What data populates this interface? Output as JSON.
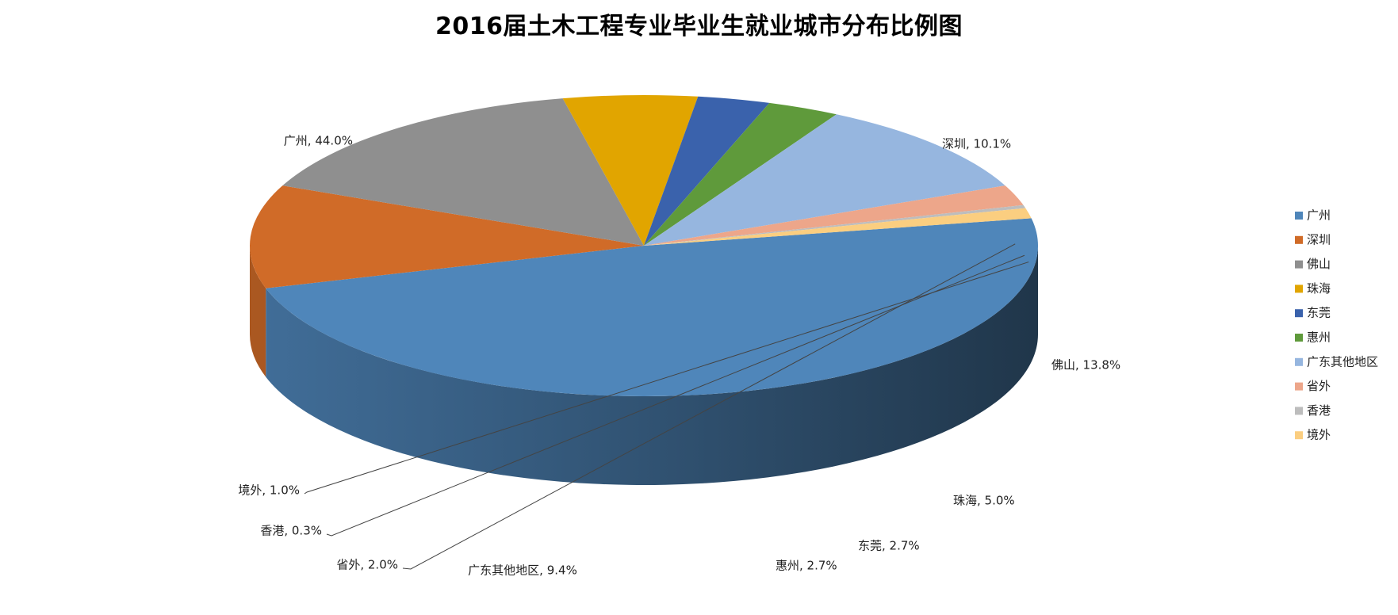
{
  "chart_data": {
    "type": "pie",
    "title": "2016届土木工程专业毕业生就业城市分布比例图",
    "legend_position": "right",
    "three_d": true,
    "label_separator": ", ",
    "slices": [
      {
        "name": "广州",
        "value": 44.0,
        "display": "44.0%",
        "color": "#4F86BA"
      },
      {
        "name": "深圳",
        "value": 10.1,
        "display": "10.1%",
        "color": "#D06B28"
      },
      {
        "name": "佛山",
        "value": 13.8,
        "display": "13.8%",
        "color": "#8F8F8F"
      },
      {
        "name": "珠海",
        "value": 5.0,
        "display": "5.0%",
        "color": "#E1A500"
      },
      {
        "name": "东莞",
        "value": 2.7,
        "display": "2.7%",
        "color": "#3A62AC"
      },
      {
        "name": "惠州",
        "value": 2.7,
        "display": "2.7%",
        "color": "#5F9A3B"
      },
      {
        "name": "广东其他地区",
        "value": 9.4,
        "display": "9.4%",
        "color": "#96B6DF"
      },
      {
        "name": "省外",
        "value": 2.0,
        "display": "2.0%",
        "color": "#EDA68A"
      },
      {
        "name": "香港",
        "value": 0.3,
        "display": "0.3%",
        "color": "#BDBDBD"
      },
      {
        "name": "境外",
        "value": 1.0,
        "display": "1.0%",
        "color": "#FBCE80"
      }
    ]
  }
}
